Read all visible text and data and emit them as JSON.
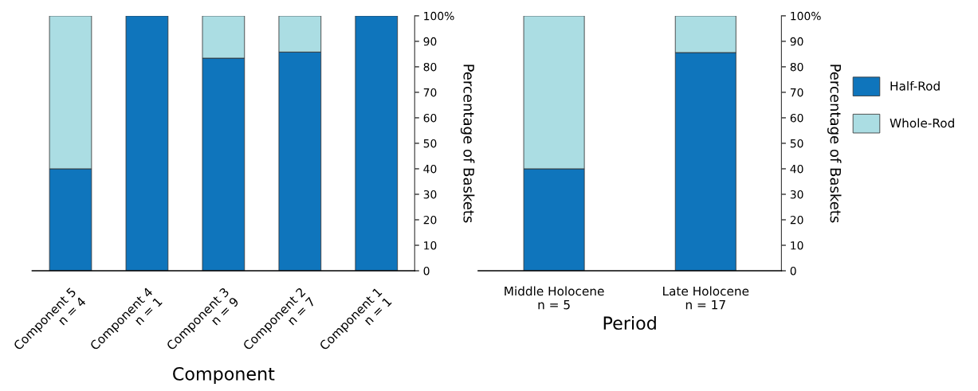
{
  "chart_data": [
    {
      "type": "bar",
      "stacked": true,
      "categories": [
        "Component 5\nn = 4",
        "Component 4\nn = 1",
        "Component 3\nn = 9",
        "Component 2\nn = 7",
        "Component 1\nn = 1"
      ],
      "series": [
        {
          "color": "#0f75bc",
          "values": [
            40,
            100,
            83.4,
            85.8,
            100
          ]
        },
        {
          "color": "#abdde3",
          "values": [
            60,
            null,
            16.6,
            14.2,
            null
          ]
        }
      ],
      "xlabel": "Component",
      "ylabel": "Percentage of Baskets",
      "ylim": [
        0,
        100
      ],
      "yticks": [
        0,
        10,
        20,
        30,
        40,
        50,
        60,
        70,
        80,
        90,
        {
          "value": 100,
          "label": "100%"
        }
      ]
    },
    {
      "type": "bar",
      "stacked": true,
      "categories": [
        "Middle Holocene\nn = 5",
        "Late Holocene\nn = 17"
      ],
      "series": [
        {
          "name": "Half-Rod",
          "color": "#0f75bc",
          "values": [
            40,
            85.6
          ]
        },
        {
          "name": "Whole-Rod",
          "color": "#abdde3",
          "values": [
            60,
            14.4
          ]
        }
      ],
      "xlabel": "Period",
      "ylabel": "Percentage of Baskets",
      "ylim": [
        0,
        100
      ],
      "yticks": [
        0,
        10,
        20,
        30,
        40,
        50,
        60,
        70,
        80,
        90,
        {
          "value": 100,
          "label": "100%"
        }
      ],
      "legend": "right"
    }
  ]
}
